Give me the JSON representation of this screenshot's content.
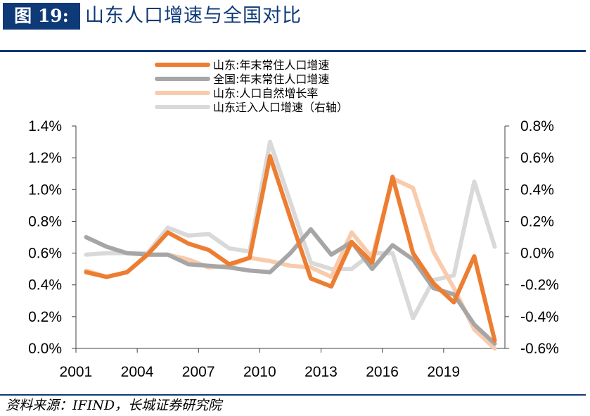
{
  "header": {
    "figure_label": "图 19:",
    "title": "山东人口增速与全国对比"
  },
  "source": "资料来源：IFIND，长城证券研究院",
  "colors": {
    "shandong_total": "#ed7d31",
    "national_total": "#a6a6a6",
    "shandong_natural": "#f8cbad",
    "shandong_migration": "#d9d9d9",
    "brand": "#0f3a78"
  },
  "chart_data": {
    "type": "line",
    "x": [
      2001,
      2002,
      2003,
      2004,
      2005,
      2006,
      2007,
      2008,
      2009,
      2010,
      2011,
      2012,
      2013,
      2014,
      2015,
      2016,
      2017,
      2018,
      2019,
      2020,
      2021
    ],
    "x_tick_labels": [
      "2001",
      "2004",
      "2007",
      "2010",
      "2013",
      "2016",
      "2019"
    ],
    "xlim": [
      2000.5,
      2021.5
    ],
    "y_left": {
      "ylim": [
        0.0,
        1.4
      ],
      "ticks": [
        0.0,
        0.2,
        0.4,
        0.6,
        0.8,
        1.0,
        1.2,
        1.4
      ],
      "tick_labels": [
        "0.0%",
        "0.2%",
        "0.4%",
        "0.6%",
        "0.8%",
        "1.0%",
        "1.2%",
        "1.4%"
      ]
    },
    "y_right": {
      "ylim": [
        -0.6,
        0.8
      ],
      "ticks": [
        -0.6,
        -0.4,
        -0.2,
        0.0,
        0.2,
        0.4,
        0.6,
        0.8
      ],
      "tick_labels": [
        "-0.6%",
        "-0.4%",
        "-0.2%",
        "0.0%",
        "0.2%",
        "0.4%",
        "0.6%",
        "0.8%"
      ]
    },
    "legend_position": "top-center",
    "series": [
      {
        "name": "山东:年末常住人口增速",
        "axis": "left",
        "color": "#ed7d31",
        "values": [
          0.48,
          0.45,
          0.48,
          0.59,
          0.73,
          0.66,
          0.62,
          0.53,
          0.57,
          1.21,
          0.82,
          0.44,
          0.39,
          0.67,
          0.54,
          1.08,
          0.6,
          0.41,
          0.29,
          0.58,
          0.05
        ]
      },
      {
        "name": "全国:年末常住人口增速",
        "axis": "left",
        "color": "#a6a6a6",
        "values": [
          0.7,
          0.64,
          0.6,
          0.59,
          0.59,
          0.53,
          0.52,
          0.51,
          0.49,
          0.48,
          0.6,
          0.75,
          0.59,
          0.67,
          0.5,
          0.65,
          0.56,
          0.38,
          0.34,
          0.15,
          0.03
        ]
      },
      {
        "name": "山东:人口自然增长率",
        "axis": "left",
        "color": "#f8cbad",
        "values": [
          0.49,
          0.45,
          0.48,
          0.59,
          0.59,
          0.56,
          0.51,
          0.52,
          0.57,
          0.55,
          0.52,
          0.51,
          0.45,
          0.73,
          0.57,
          1.07,
          1.01,
          0.61,
          0.38,
          0.12,
          0.0
        ]
      },
      {
        "name": "山东迁入人口增速（右轴）",
        "axis": "right",
        "color": "#d9d9d9",
        "values": [
          -0.01,
          0.0,
          0.0,
          0.0,
          0.16,
          0.11,
          0.12,
          0.03,
          0.01,
          0.7,
          0.32,
          -0.06,
          -0.1,
          -0.1,
          0.0,
          0.0,
          -0.41,
          -0.17,
          -0.14,
          0.45,
          0.04
        ]
      }
    ]
  }
}
